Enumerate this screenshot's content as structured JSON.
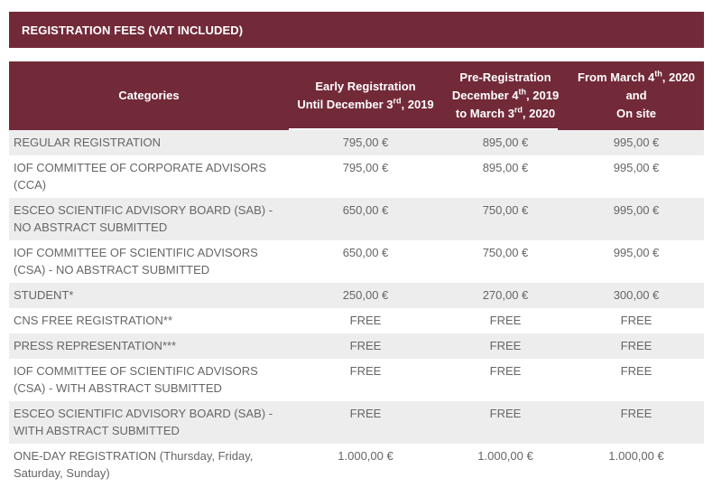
{
  "section_title": "REGISTRATION FEES (VAT INCLUDED)",
  "header": {
    "categories": "Categories",
    "early": {
      "line1": "Early Registration",
      "line2_pre": "Until December 3",
      "line2_sup": "rd",
      "line2_post": ", 2019"
    },
    "pre": {
      "line1": "Pre-Registration",
      "line2_pre": "December 4",
      "line2_sup": "th",
      "line2_post": ", 2019",
      "line3_pre": "to March 3",
      "line3_sup": "rd",
      "line3_post": ", 2020"
    },
    "onsite": {
      "line1_pre": "From March 4",
      "line1_sup": "th",
      "line1_post": ", 2020",
      "line2": "and",
      "line3": "On site"
    }
  },
  "rows": [
    {
      "category": "REGULAR REGISTRATION",
      "early": "795,00 €",
      "pre": "895,00 €",
      "onsite": "995,00 €"
    },
    {
      "category": "IOF COMMITTEE OF CORPORATE ADVISORS (CCA)",
      "early": "795,00 €",
      "pre": "895,00 €",
      "onsite": "995,00 €"
    },
    {
      "category": "ESCEO SCIENTIFIC ADVISORY BOARD (SAB) - NO ABSTRACT SUBMITTED",
      "early": "650,00 €",
      "pre": "750,00 €",
      "onsite": "995,00 €"
    },
    {
      "category": "IOF COMMITTEE OF SCIENTIFIC ADVISORS (CSA) - NO ABSTRACT SUBMITTED",
      "early": "650,00 €",
      "pre": "750,00 €",
      "onsite": "995,00 €"
    },
    {
      "category": "STUDENT*",
      "early": "250,00 €",
      "pre": "270,00 €",
      "onsite": "300,00 €"
    },
    {
      "category": "CNS FREE REGISTRATION**",
      "early": "FREE",
      "pre": "FREE",
      "onsite": "FREE"
    },
    {
      "category": "PRESS REPRESENTATION***",
      "early": "FREE",
      "pre": "FREE",
      "onsite": "FREE"
    },
    {
      "category": "IOF COMMITTEE OF SCIENTIFIC ADVISORS (CSA) - WITH ABSTRACT SUBMITTED",
      "early": "FREE",
      "pre": "FREE",
      "onsite": "FREE"
    },
    {
      "category": "ESCEO SCIENTIFIC ADVISORY BOARD (SAB) - WITH ABSTRACT SUBMITTED",
      "early": "FREE",
      "pre": "FREE",
      "onsite": "FREE"
    },
    {
      "category": "ONE-DAY REGISTRATION (Thursday, Friday, Saturday, Sunday)",
      "early": "1.000,00 €",
      "pre": "1.000,00 €",
      "onsite": "1.000,00 €"
    }
  ]
}
